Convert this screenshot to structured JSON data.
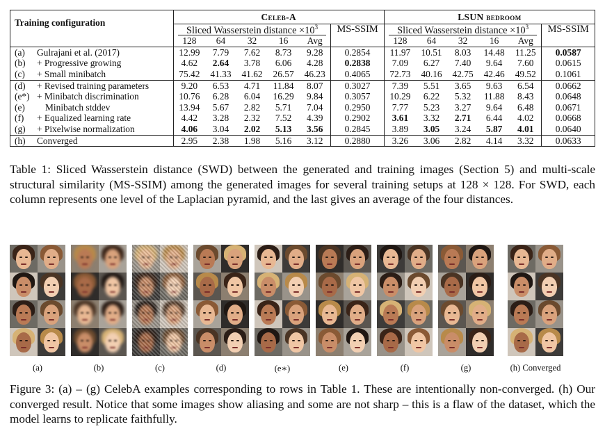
{
  "table": {
    "training_configuration_header": "Training configuration",
    "dataset_celeba": "Celeb-A",
    "dataset_lsun": "LSUN bedroom",
    "swd_header": "Sliced Wasserstein distance ×10",
    "swd_exponent": "3",
    "msssim_header": "MS-SSIM",
    "swd_columns": [
      "128",
      "64",
      "32",
      "16",
      "Avg"
    ],
    "rows": [
      {
        "tag": "(a)",
        "name": "Gulrajani et al. (2017)",
        "celeba": [
          "12.99",
          "7.79",
          "7.62",
          "8.73",
          "9.28"
        ],
        "celeba_ms": "0.2854",
        "lsun": [
          "11.97",
          "10.51",
          "8.03",
          "14.48",
          "11.25"
        ],
        "lsun_ms": "0.0587"
      },
      {
        "tag": "(b)",
        "name": "+ Progressive growing",
        "celeba": [
          "4.62",
          "2.64",
          "3.78",
          "6.06",
          "4.28"
        ],
        "celeba_ms": "0.2838",
        "lsun": [
          "7.09",
          "6.27",
          "7.40",
          "9.64",
          "7.60"
        ],
        "lsun_ms": "0.0615"
      },
      {
        "tag": "(c)",
        "name": "+ Small minibatch",
        "celeba": [
          "75.42",
          "41.33",
          "41.62",
          "26.57",
          "46.23"
        ],
        "celeba_ms": "0.4065",
        "lsun": [
          "72.73",
          "40.16",
          "42.75",
          "42.46",
          "49.52"
        ],
        "lsun_ms": "0.1061"
      },
      {
        "tag": "(d)",
        "name": "+ Revised training parameters",
        "celeba": [
          "9.20",
          "6.53",
          "4.71",
          "11.84",
          "8.07"
        ],
        "celeba_ms": "0.3027",
        "lsun": [
          "7.39",
          "5.51",
          "3.65",
          "9.63",
          "6.54"
        ],
        "lsun_ms": "0.0662"
      },
      {
        "tag": "(e*)",
        "name": "+ Minibatch discrimination",
        "celeba": [
          "10.76",
          "6.28",
          "6.04",
          "16.29",
          "9.84"
        ],
        "celeba_ms": "0.3057",
        "lsun": [
          "10.29",
          "6.22",
          "5.32",
          "11.88",
          "8.43"
        ],
        "lsun_ms": "0.0648"
      },
      {
        "tag": "(e)",
        "name": "Minibatch stddev",
        "celeba": [
          "13.94",
          "5.67",
          "2.82",
          "5.71",
          "7.04"
        ],
        "celeba_ms": "0.2950",
        "lsun": [
          "7.77",
          "5.23",
          "3.27",
          "9.64",
          "6.48"
        ],
        "lsun_ms": "0.0671"
      },
      {
        "tag": "(f)",
        "name": "+ Equalized learning rate",
        "celeba": [
          "4.42",
          "3.28",
          "2.32",
          "7.52",
          "4.39"
        ],
        "celeba_ms": "0.2902",
        "lsun": [
          "3.61",
          "3.32",
          "2.71",
          "6.44",
          "4.02"
        ],
        "lsun_ms": "0.0668"
      },
      {
        "tag": "(g)",
        "name": "+ Pixelwise normalization",
        "celeba": [
          "4.06",
          "3.04",
          "2.02",
          "5.13",
          "3.56"
        ],
        "celeba_ms": "0.2845",
        "lsun": [
          "3.89",
          "3.05",
          "3.24",
          "5.87",
          "4.01"
        ],
        "lsun_ms": "0.0640"
      },
      {
        "tag": "(h)",
        "name": "Converged",
        "celeba": [
          "2.95",
          "2.38",
          "1.98",
          "5.16",
          "3.12"
        ],
        "celeba_ms": "0.2880",
        "lsun": [
          "3.26",
          "3.06",
          "2.82",
          "4.14",
          "3.32"
        ],
        "lsun_ms": "0.0633"
      }
    ]
  },
  "table_caption": "Table 1: Sliced Wasserstein distance (SWD) between the generated and training images (Section 5) and multi-scale structural similarity (MS-SSIM) among the generated images for several training setups at 128 × 128. For SWD, each column represents one level of the Laplacian pyramid, and the last gives an average of the four distances.",
  "figure_panels": [
    "(a)",
    "(b)",
    "(c)",
    "(d)",
    "(e∗)",
    "(e)",
    "(f)",
    "(g)",
    "(h) Converged"
  ],
  "figure_caption": "Figure 3: (a) – (g) CelebA examples corresponding to rows in Table 1. These are intentionally non-converged. (h) Our converged result. Notice that some images show aliasing and some are not sharp – this is a flaw of the dataset, which the model learns to replicate faithfully."
}
